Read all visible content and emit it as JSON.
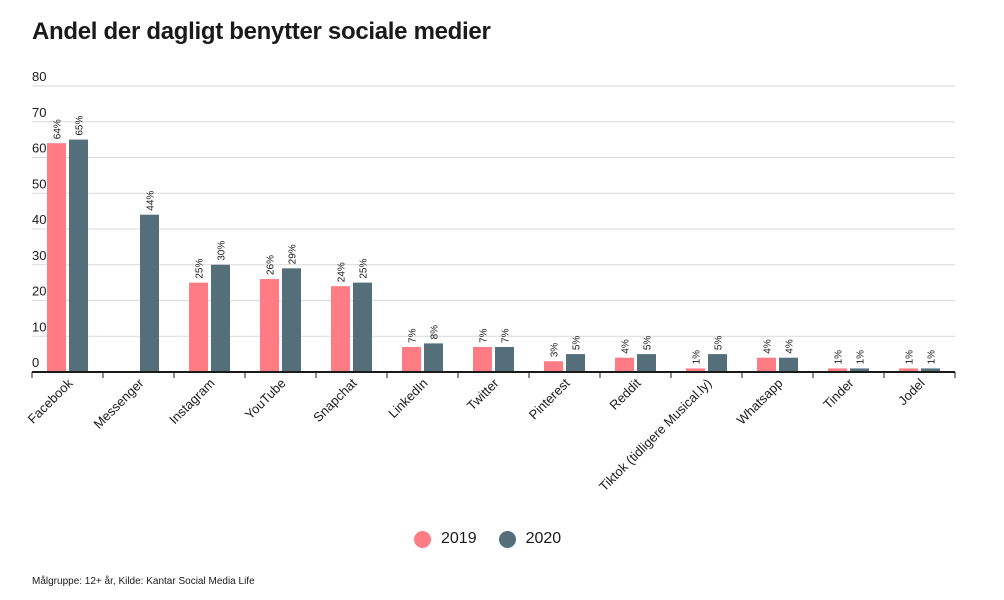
{
  "chart_data": {
    "type": "bar",
    "title": "Andel der dagligt benytter sociale medier",
    "categories": [
      "Facebook",
      "Messenger",
      "Instagram",
      "YouTube",
      "Snapchat",
      "LinkedIn",
      "Twitter",
      "Pinterest",
      "Reddit",
      "Tiktok (tidligere Musical.ly)",
      "Whatsapp",
      "Tinder",
      "Jodel"
    ],
    "series": [
      {
        "name": "2019",
        "color": "#ff7c85",
        "values": [
          64,
          null,
          25,
          26,
          24,
          7,
          7,
          3,
          4,
          1,
          4,
          1,
          1
        ],
        "labels": [
          "64%",
          "",
          "25%",
          "26%",
          "24%",
          "7%",
          "7%",
          "3%",
          "4%",
          "1%",
          "4%",
          "1%",
          "1%"
        ]
      },
      {
        "name": "2020",
        "color": "#546e7a",
        "values": [
          65,
          44,
          30,
          29,
          25,
          8,
          7,
          5,
          5,
          5,
          4,
          1,
          1
        ],
        "labels": [
          "65%",
          "44%",
          "30%",
          "29%",
          "25%",
          "8%",
          "7%",
          "5%",
          "5%",
          "5%",
          "4%",
          "1%",
          "1%"
        ]
      }
    ],
    "yticks": [
      "0",
      "10",
      "20",
      "30",
      "40",
      "50",
      "60",
      "70",
      "80"
    ],
    "ylim": [
      0,
      80
    ],
    "grid": true,
    "xlabel": "",
    "ylabel": ""
  },
  "legend": {
    "items": [
      {
        "label": "2019"
      },
      {
        "label": "2020"
      }
    ]
  },
  "footer": {
    "source": "Målgruppe: 12+ år, Kilde: Kantar Social Media Life"
  }
}
